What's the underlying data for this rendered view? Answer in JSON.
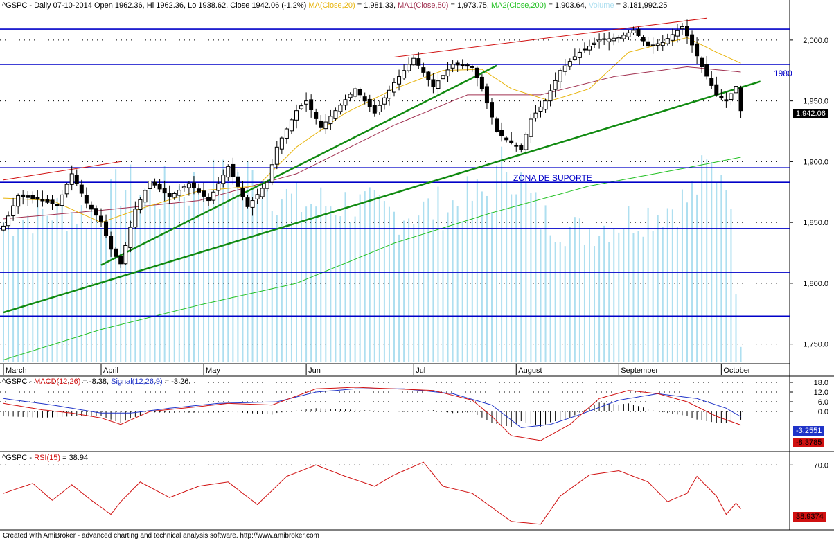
{
  "colors": {
    "candle_up": "#ffffff",
    "candle_down": "#000000",
    "ma20": "#e8b40c",
    "ma50": "#a03050",
    "ma200": "#22c022",
    "volume": "#aedff0",
    "support_line": "#0000c8",
    "trend_line": "#108a10",
    "channel_line": "#d01010",
    "macd": "#d01010",
    "signal": "#1f33c8",
    "rsi": "#d01010",
    "price_tag_bg": "#000000",
    "macd_tag_bg": "#1f33c8",
    "neg_tag_bg": "#d01010"
  },
  "header": {
    "prefix": "^GSPC - Daily 07-10-2014 Open 1962.36, Hi 1962.36, Lo 1938.62, Close 1942.06 (-1.2%) ",
    "ma20_label": "MA(Close,20)",
    "ma20_value": " = 1,981.33, ",
    "ma50_label": "MA1(Close,50)",
    "ma50_value": " = 1,973.75, ",
    "ma200_label": "MA2(Close,200)",
    "ma200_value": " = 1,903.64, ",
    "volume_label": "Volume",
    "volume_value": " = 3,181,992.25"
  },
  "price_labels": {
    "level_1980": "1980",
    "zona": "ZONA DE SUPORTE",
    "last_price": "1,942.06"
  },
  "macd_header": {
    "prefix": "^GSPC - ",
    "macd_label": "MACD(12,26)",
    "macd_value": " = -8.38, ",
    "signal_label": "Signal(12,26,9)",
    "signal_value": " = -3.26."
  },
  "macd_tags": {
    "signal": "-3.2551",
    "macd": "-8.3785"
  },
  "rsi_header": {
    "prefix": "^GSPC - ",
    "rsi_label": "RSI(15)",
    "rsi_value": " = 38.94"
  },
  "rsi_tag": "38.9374",
  "footer": "Created with AmiBroker - advanced charting and technical analysis software. http://www.amibroker.com",
  "chart_data": [
    {
      "type": "candlestick",
      "title": "^GSPC - Daily 07-10-2014",
      "ylim": [
        1735,
        2025
      ],
      "y_ticks": [
        "2,000.0",
        "1,950.0",
        "1,900.0",
        "1,850.0",
        "1,800.0",
        "1,750.0"
      ],
      "y_tick_values": [
        2000,
        1950,
        1900,
        1850,
        1800,
        1750
      ],
      "x_labels": [
        "March",
        "April",
        "May",
        "Jun",
        "Jul",
        "August",
        "September",
        "October"
      ],
      "x_label_bars": [
        0,
        20,
        41,
        62,
        84,
        105,
        126,
        147
      ],
      "bars": 152,
      "ohlc_keypoints": [
        [
          0,
          1847
        ],
        [
          3,
          1872
        ],
        [
          7,
          1869
        ],
        [
          11,
          1864
        ],
        [
          14,
          1890
        ],
        [
          17,
          1866
        ],
        [
          20,
          1851
        ],
        [
          22,
          1828
        ],
        [
          24,
          1816
        ],
        [
          27,
          1861
        ],
        [
          30,
          1884
        ],
        [
          34,
          1871
        ],
        [
          38,
          1882
        ],
        [
          42,
          1868
        ],
        [
          46,
          1896
        ],
        [
          50,
          1863
        ],
        [
          54,
          1883
        ],
        [
          56,
          1912
        ],
        [
          60,
          1942
        ],
        [
          62,
          1950
        ],
        [
          65,
          1928
        ],
        [
          68,
          1942
        ],
        [
          72,
          1960
        ],
        [
          76,
          1940
        ],
        [
          80,
          1965
        ],
        [
          84,
          1985
        ],
        [
          88,
          1962
        ],
        [
          92,
          1980
        ],
        [
          96,
          1978
        ],
        [
          98,
          1960
        ],
        [
          101,
          1925
        ],
        [
          103,
          1918
        ],
        [
          106,
          1910
        ],
        [
          108,
          1935
        ],
        [
          111,
          1950
        ],
        [
          114,
          1975
        ],
        [
          118,
          1990
        ],
        [
          122,
          2000
        ],
        [
          126,
          2002
        ],
        [
          129,
          2008
        ],
        [
          132,
          1995
        ],
        [
          135,
          1998
        ],
        [
          139,
          2011
        ],
        [
          141,
          1996
        ],
        [
          143,
          1978
        ],
        [
          146,
          1955
        ],
        [
          148,
          1950
        ],
        [
          150,
          1962
        ],
        [
          151,
          1942
        ]
      ],
      "horizontal_lines": [
        2009,
        1980,
        1895,
        1883,
        1845,
        1809,
        1773
      ],
      "trend_lines": [
        {
          "from": [
            0,
            1776
          ],
          "to": [
            155,
            1966
          ]
        },
        {
          "from": [
            20,
            1815
          ],
          "to": [
            101,
            1979
          ]
        }
      ],
      "channel_lines": [
        {
          "from": [
            0,
            1885
          ],
          "to": [
            24,
            1900
          ]
        },
        {
          "from": [
            80,
            1986
          ],
          "to": [
            144,
            2018
          ]
        }
      ],
      "ma20_keypoints": [
        [
          0,
          1870
        ],
        [
          10,
          1868
        ],
        [
          20,
          1850
        ],
        [
          27,
          1860
        ],
        [
          40,
          1876
        ],
        [
          52,
          1880
        ],
        [
          60,
          1912
        ],
        [
          70,
          1940
        ],
        [
          80,
          1960
        ],
        [
          90,
          1975
        ],
        [
          98,
          1976
        ],
        [
          104,
          1960
        ],
        [
          112,
          1950
        ],
        [
          120,
          1960
        ],
        [
          128,
          1990
        ],
        [
          134,
          1996
        ],
        [
          140,
          2002
        ],
        [
          146,
          1990
        ],
        [
          151,
          1981
        ]
      ],
      "ma50_keypoints": [
        [
          0,
          1853
        ],
        [
          20,
          1860
        ],
        [
          40,
          1868
        ],
        [
          60,
          1890
        ],
        [
          80,
          1930
        ],
        [
          95,
          1955
        ],
        [
          110,
          1955
        ],
        [
          125,
          1970
        ],
        [
          140,
          1978
        ],
        [
          151,
          1973.75
        ]
      ],
      "ma200_keypoints": [
        [
          0,
          1737
        ],
        [
          20,
          1762
        ],
        [
          40,
          1782
        ],
        [
          60,
          1800
        ],
        [
          80,
          1833
        ],
        [
          100,
          1858
        ],
        [
          120,
          1880
        ],
        [
          140,
          1895
        ],
        [
          151,
          1903.64
        ]
      ],
      "volume_level_keypoints": [
        [
          0,
          0.4
        ],
        [
          10,
          0.43
        ],
        [
          20,
          0.42
        ],
        [
          24,
          0.5
        ],
        [
          30,
          0.48
        ],
        [
          40,
          0.5
        ],
        [
          50,
          0.53
        ],
        [
          60,
          0.45
        ],
        [
          70,
          0.45
        ],
        [
          80,
          0.42
        ],
        [
          90,
          0.44
        ],
        [
          100,
          0.48
        ],
        [
          103,
          0.58
        ],
        [
          110,
          0.41
        ],
        [
          118,
          0.37
        ],
        [
          126,
          0.4
        ],
        [
          134,
          0.43
        ],
        [
          140,
          0.46
        ],
        [
          144,
          0.54
        ],
        [
          148,
          0.56
        ],
        [
          151,
          0.05
        ]
      ]
    },
    {
      "type": "line",
      "title": "MACD(12,26) / Signal(12,26,9)",
      "ylim": [
        -24,
        21
      ],
      "y_ticks": [
        "18.0",
        "12.0",
        "6.0",
        "0.0"
      ],
      "y_tick_values": [
        18,
        12,
        6,
        0
      ],
      "series": [
        {
          "name": "MACD(12,26)",
          "keypoints": [
            [
              0,
              5
            ],
            [
              8,
              1
            ],
            [
              14,
              -1
            ],
            [
              20,
              -4
            ],
            [
              24,
              -8
            ],
            [
              30,
              0
            ],
            [
              40,
              3
            ],
            [
              46,
              5
            ],
            [
              55,
              4
            ],
            [
              64,
              14
            ],
            [
              72,
              15
            ],
            [
              80,
              14
            ],
            [
              88,
              13
            ],
            [
              96,
              7
            ],
            [
              100,
              -3
            ],
            [
              104,
              -15
            ],
            [
              110,
              -18
            ],
            [
              116,
              -8
            ],
            [
              122,
              8
            ],
            [
              128,
              13
            ],
            [
              134,
              11
            ],
            [
              140,
              6
            ],
            [
              146,
              -3
            ],
            [
              151,
              -8.38
            ]
          ]
        },
        {
          "name": "Signal(12,26,9)",
          "keypoints": [
            [
              0,
              8
            ],
            [
              10,
              4
            ],
            [
              20,
              -1
            ],
            [
              26,
              -1
            ],
            [
              34,
              2
            ],
            [
              44,
              5
            ],
            [
              56,
              6
            ],
            [
              64,
              12
            ],
            [
              72,
              14
            ],
            [
              82,
              14
            ],
            [
              92,
              11
            ],
            [
              100,
              4
            ],
            [
              106,
              -10
            ],
            [
              112,
              -8
            ],
            [
              118,
              -2
            ],
            [
              126,
              7
            ],
            [
              134,
              11
            ],
            [
              142,
              8
            ],
            [
              148,
              2
            ],
            [
              151,
              -3.26
            ]
          ]
        }
      ]
    },
    {
      "type": "line",
      "title": "RSI(15)",
      "ylim": [
        25,
        78
      ],
      "y_ticks": [
        "70.0"
      ],
      "y_tick_values": [
        70
      ],
      "series": [
        {
          "name": "RSI(15)",
          "keypoints": [
            [
              0,
              50
            ],
            [
              6,
              57
            ],
            [
              10,
              45
            ],
            [
              14,
              56
            ],
            [
              18,
              45
            ],
            [
              22,
              35
            ],
            [
              24,
              44
            ],
            [
              28,
              58
            ],
            [
              34,
              47
            ],
            [
              40,
              55
            ],
            [
              46,
              58
            ],
            [
              52,
              42
            ],
            [
              58,
              62
            ],
            [
              64,
              70
            ],
            [
              70,
              62
            ],
            [
              76,
              55
            ],
            [
              80,
              63
            ],
            [
              86,
              72
            ],
            [
              90,
              55
            ],
            [
              96,
              50
            ],
            [
              100,
              40
            ],
            [
              104,
              30
            ],
            [
              110,
              28
            ],
            [
              114,
              48
            ],
            [
              120,
              63
            ],
            [
              126,
              66
            ],
            [
              132,
              58
            ],
            [
              136,
              44
            ],
            [
              140,
              50
            ],
            [
              142,
              62
            ],
            [
              146,
              48
            ],
            [
              148,
              35
            ],
            [
              150,
              43
            ],
            [
              151,
              38.94
            ]
          ]
        }
      ]
    }
  ]
}
